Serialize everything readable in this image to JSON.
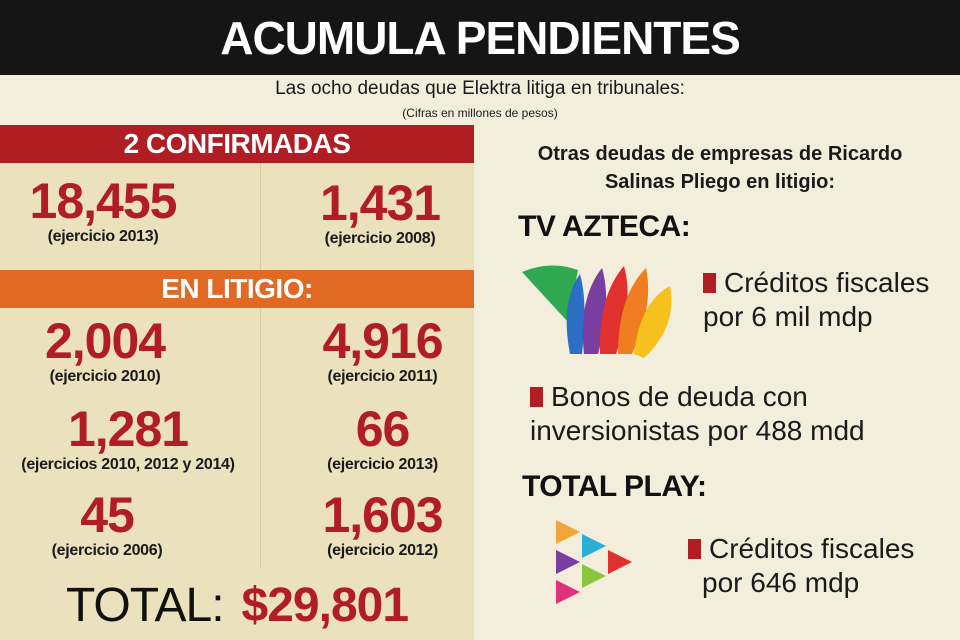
{
  "header": {
    "title": "ACUMULA PENDIENTES",
    "subtitle": "Las ocho deudas que Elektra litiga en tribunales:",
    "note": "(Cifras en millones de pesos)"
  },
  "confirmed": {
    "heading": "2 CONFIRMADAS",
    "items": [
      {
        "amount": "18,455",
        "caption": "(ejercicio 2013)"
      },
      {
        "amount": "1,431",
        "caption": "(ejercicio 2008)"
      }
    ]
  },
  "litigation": {
    "heading": "EN LITIGIO:",
    "items": [
      {
        "amount": "2,004",
        "caption": "(ejercicio 2010)"
      },
      {
        "amount": "4,916",
        "caption": "(ejercicio 2011)"
      },
      {
        "amount": "1,281",
        "caption": "(ejercicios 2010, 2012 y 2014)"
      },
      {
        "amount": "66",
        "caption": "(ejercicio 2013)"
      },
      {
        "amount": "45",
        "caption": "(ejercicio 2006)"
      },
      {
        "amount": "1,603",
        "caption": "(ejercicio 2012)"
      }
    ]
  },
  "total": {
    "label": "TOTAL:",
    "value": "$29,801"
  },
  "others": {
    "intro_line1": "Otras deudas de empresas de Ricardo",
    "intro_line2": "Salinas Pliego en litigio:",
    "tv_azteca": {
      "name": "TV AZTECA:",
      "item1_line1": "Créditos fiscales",
      "item1_line2": "por 6 mil mdp",
      "item2_line1": "Bonos de deuda con",
      "item2_line2": "inversionistas por 488 mdd"
    },
    "total_play": {
      "name": "TOTAL PLAY:",
      "item1_line1": "Créditos fiscales",
      "item1_line2": "por 646 mdp"
    }
  },
  "icons": {
    "tv_azteca_logo": "tv-azteca-logo",
    "total_play_logo": "total-play-logo"
  },
  "colors": {
    "red": "#b01e23",
    "orange": "#e06a24",
    "black": "#151515",
    "background": "#f3eedc",
    "panel": "#ebe1bd"
  }
}
